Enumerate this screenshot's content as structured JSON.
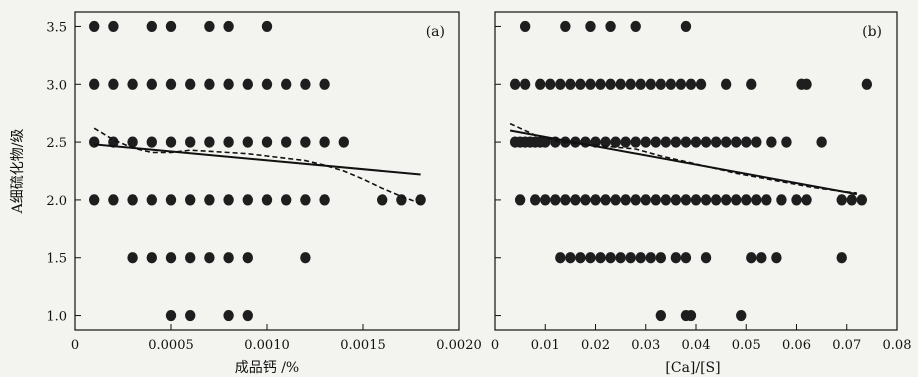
{
  "chart_data": [
    {
      "type": "scatter",
      "panel_label": "(a)",
      "xlabel": "成品钙 /%",
      "ylabel": "A细硫化物/级",
      "xlim": [
        0,
        0.002
      ],
      "ylim": [
        0.875,
        3.625
      ],
      "xticks": [
        0,
        0.0005,
        0.001,
        0.0015,
        0.002
      ],
      "xtick_labels": [
        "0",
        "0.0005",
        "0.0010",
        "0.0015",
        "0.0020"
      ],
      "yticks": [
        1.0,
        1.5,
        2.0,
        2.5,
        3.0,
        3.5
      ],
      "ytick_labels": [
        "1.0",
        "1.5",
        "2.0",
        "2.5",
        "3.0",
        "3.5"
      ],
      "points": [
        [
          0.0001,
          3.5
        ],
        [
          0.0002,
          3.5
        ],
        [
          0.0004,
          3.5
        ],
        [
          0.0005,
          3.5
        ],
        [
          0.0007,
          3.5
        ],
        [
          0.0008,
          3.5
        ],
        [
          0.001,
          3.5
        ],
        [
          0.0001,
          3.0
        ],
        [
          0.0002,
          3.0
        ],
        [
          0.0003,
          3.0
        ],
        [
          0.0004,
          3.0
        ],
        [
          0.0005,
          3.0
        ],
        [
          0.0006,
          3.0
        ],
        [
          0.0007,
          3.0
        ],
        [
          0.0008,
          3.0
        ],
        [
          0.0009,
          3.0
        ],
        [
          0.001,
          3.0
        ],
        [
          0.0011,
          3.0
        ],
        [
          0.0012,
          3.0
        ],
        [
          0.0013,
          3.0
        ],
        [
          0.0001,
          2.5
        ],
        [
          0.0002,
          2.5
        ],
        [
          0.0003,
          2.5
        ],
        [
          0.0004,
          2.5
        ],
        [
          0.0005,
          2.5
        ],
        [
          0.0006,
          2.5
        ],
        [
          0.0007,
          2.5
        ],
        [
          0.0008,
          2.5
        ],
        [
          0.0009,
          2.5
        ],
        [
          0.001,
          2.5
        ],
        [
          0.0011,
          2.5
        ],
        [
          0.0012,
          2.5
        ],
        [
          0.0013,
          2.5
        ],
        [
          0.0014,
          2.5
        ],
        [
          0.0001,
          2.0
        ],
        [
          0.0002,
          2.0
        ],
        [
          0.0003,
          2.0
        ],
        [
          0.0004,
          2.0
        ],
        [
          0.0005,
          2.0
        ],
        [
          0.0006,
          2.0
        ],
        [
          0.0007,
          2.0
        ],
        [
          0.0008,
          2.0
        ],
        [
          0.0009,
          2.0
        ],
        [
          0.001,
          2.0
        ],
        [
          0.0011,
          2.0
        ],
        [
          0.0012,
          2.0
        ],
        [
          0.0013,
          2.0
        ],
        [
          0.0016,
          2.0
        ],
        [
          0.0017,
          2.0
        ],
        [
          0.0018,
          2.0
        ],
        [
          0.0003,
          1.5
        ],
        [
          0.0004,
          1.5
        ],
        [
          0.0005,
          1.5
        ],
        [
          0.0006,
          1.5
        ],
        [
          0.0007,
          1.5
        ],
        [
          0.0008,
          1.5
        ],
        [
          0.0009,
          1.5
        ],
        [
          0.0012,
          1.5
        ],
        [
          0.0005,
          1.0
        ],
        [
          0.0006,
          1.0
        ],
        [
          0.0008,
          1.0
        ],
        [
          0.0009,
          1.0
        ]
      ],
      "trend_solid": [
        [
          0.0001,
          2.48
        ],
        [
          0.0018,
          2.22
        ]
      ],
      "trend_dashed": [
        [
          0.0001,
          2.62
        ],
        [
          0.0002,
          2.52
        ],
        [
          0.0003,
          2.45
        ],
        [
          0.0004,
          2.41
        ],
        [
          0.0005,
          2.41
        ],
        [
          0.0006,
          2.43
        ],
        [
          0.0007,
          2.42
        ],
        [
          0.0008,
          2.41
        ],
        [
          0.0009,
          2.4
        ],
        [
          0.001,
          2.38
        ],
        [
          0.0011,
          2.36
        ],
        [
          0.0012,
          2.34
        ],
        [
          0.0013,
          2.3
        ],
        [
          0.0014,
          2.25
        ],
        [
          0.0015,
          2.18
        ],
        [
          0.0016,
          2.1
        ],
        [
          0.0017,
          2.03
        ],
        [
          0.0018,
          1.97
        ]
      ]
    },
    {
      "type": "scatter",
      "panel_label": "(b)",
      "xlabel": "[Ca]/[S]",
      "ylabel": "",
      "xlim": [
        0,
        0.08
      ],
      "ylim": [
        0.875,
        3.625
      ],
      "xticks": [
        0,
        0.01,
        0.02,
        0.03,
        0.04,
        0.05,
        0.06,
        0.07,
        0.08
      ],
      "xtick_labels": [
        "0",
        "0.01",
        "0.02",
        "0.03",
        "0.04",
        "0.05",
        "0.06",
        "0.07",
        "0.08"
      ],
      "points": [
        [
          0.006,
          3.5
        ],
        [
          0.014,
          3.5
        ],
        [
          0.019,
          3.5
        ],
        [
          0.023,
          3.5
        ],
        [
          0.028,
          3.5
        ],
        [
          0.038,
          3.5
        ],
        [
          0.004,
          3.0
        ],
        [
          0.006,
          3.0
        ],
        [
          0.009,
          3.0
        ],
        [
          0.011,
          3.0
        ],
        [
          0.013,
          3.0
        ],
        [
          0.015,
          3.0
        ],
        [
          0.017,
          3.0
        ],
        [
          0.019,
          3.0
        ],
        [
          0.021,
          3.0
        ],
        [
          0.023,
          3.0
        ],
        [
          0.025,
          3.0
        ],
        [
          0.027,
          3.0
        ],
        [
          0.029,
          3.0
        ],
        [
          0.031,
          3.0
        ],
        [
          0.033,
          3.0
        ],
        [
          0.035,
          3.0
        ],
        [
          0.037,
          3.0
        ],
        [
          0.039,
          3.0
        ],
        [
          0.041,
          3.0
        ],
        [
          0.046,
          3.0
        ],
        [
          0.051,
          3.0
        ],
        [
          0.061,
          3.0
        ],
        [
          0.062,
          3.0
        ],
        [
          0.074,
          3.0
        ],
        [
          0.004,
          2.5
        ],
        [
          0.005,
          2.5
        ],
        [
          0.006,
          2.5
        ],
        [
          0.007,
          2.5
        ],
        [
          0.008,
          2.5
        ],
        [
          0.009,
          2.5
        ],
        [
          0.01,
          2.5
        ],
        [
          0.012,
          2.5
        ],
        [
          0.014,
          2.5
        ],
        [
          0.016,
          2.5
        ],
        [
          0.018,
          2.5
        ],
        [
          0.02,
          2.5
        ],
        [
          0.022,
          2.5
        ],
        [
          0.024,
          2.5
        ],
        [
          0.026,
          2.5
        ],
        [
          0.028,
          2.5
        ],
        [
          0.03,
          2.5
        ],
        [
          0.032,
          2.5
        ],
        [
          0.034,
          2.5
        ],
        [
          0.036,
          2.5
        ],
        [
          0.038,
          2.5
        ],
        [
          0.04,
          2.5
        ],
        [
          0.042,
          2.5
        ],
        [
          0.044,
          2.5
        ],
        [
          0.046,
          2.5
        ],
        [
          0.048,
          2.5
        ],
        [
          0.05,
          2.5
        ],
        [
          0.052,
          2.5
        ],
        [
          0.055,
          2.5
        ],
        [
          0.058,
          2.5
        ],
        [
          0.065,
          2.5
        ],
        [
          0.005,
          2.0
        ],
        [
          0.008,
          2.0
        ],
        [
          0.01,
          2.0
        ],
        [
          0.012,
          2.0
        ],
        [
          0.014,
          2.0
        ],
        [
          0.016,
          2.0
        ],
        [
          0.018,
          2.0
        ],
        [
          0.02,
          2.0
        ],
        [
          0.022,
          2.0
        ],
        [
          0.024,
          2.0
        ],
        [
          0.026,
          2.0
        ],
        [
          0.028,
          2.0
        ],
        [
          0.03,
          2.0
        ],
        [
          0.032,
          2.0
        ],
        [
          0.034,
          2.0
        ],
        [
          0.036,
          2.0
        ],
        [
          0.038,
          2.0
        ],
        [
          0.04,
          2.0
        ],
        [
          0.042,
          2.0
        ],
        [
          0.044,
          2.0
        ],
        [
          0.046,
          2.0
        ],
        [
          0.048,
          2.0
        ],
        [
          0.05,
          2.0
        ],
        [
          0.052,
          2.0
        ],
        [
          0.054,
          2.0
        ],
        [
          0.057,
          2.0
        ],
        [
          0.06,
          2.0
        ],
        [
          0.062,
          2.0
        ],
        [
          0.069,
          2.0
        ],
        [
          0.071,
          2.0
        ],
        [
          0.073,
          2.0
        ],
        [
          0.013,
          1.5
        ],
        [
          0.015,
          1.5
        ],
        [
          0.017,
          1.5
        ],
        [
          0.019,
          1.5
        ],
        [
          0.021,
          1.5
        ],
        [
          0.023,
          1.5
        ],
        [
          0.025,
          1.5
        ],
        [
          0.027,
          1.5
        ],
        [
          0.029,
          1.5
        ],
        [
          0.031,
          1.5
        ],
        [
          0.033,
          1.5
        ],
        [
          0.036,
          1.5
        ],
        [
          0.038,
          1.5
        ],
        [
          0.042,
          1.5
        ],
        [
          0.051,
          1.5
        ],
        [
          0.053,
          1.5
        ],
        [
          0.056,
          1.5
        ],
        [
          0.069,
          1.5
        ],
        [
          0.033,
          1.0
        ],
        [
          0.038,
          1.0
        ],
        [
          0.039,
          1.0
        ],
        [
          0.049,
          1.0
        ]
      ],
      "trend_solid": [
        [
          0.003,
          2.6
        ],
        [
          0.072,
          2.05
        ]
      ],
      "trend_dashed": [
        [
          0.003,
          2.66
        ],
        [
          0.008,
          2.56
        ],
        [
          0.013,
          2.5
        ],
        [
          0.018,
          2.48
        ],
        [
          0.023,
          2.46
        ],
        [
          0.028,
          2.44
        ],
        [
          0.033,
          2.38
        ],
        [
          0.038,
          2.33
        ],
        [
          0.043,
          2.28
        ],
        [
          0.048,
          2.23
        ],
        [
          0.053,
          2.19
        ],
        [
          0.058,
          2.15
        ],
        [
          0.063,
          2.11
        ],
        [
          0.068,
          2.08
        ],
        [
          0.072,
          2.06
        ]
      ]
    }
  ]
}
